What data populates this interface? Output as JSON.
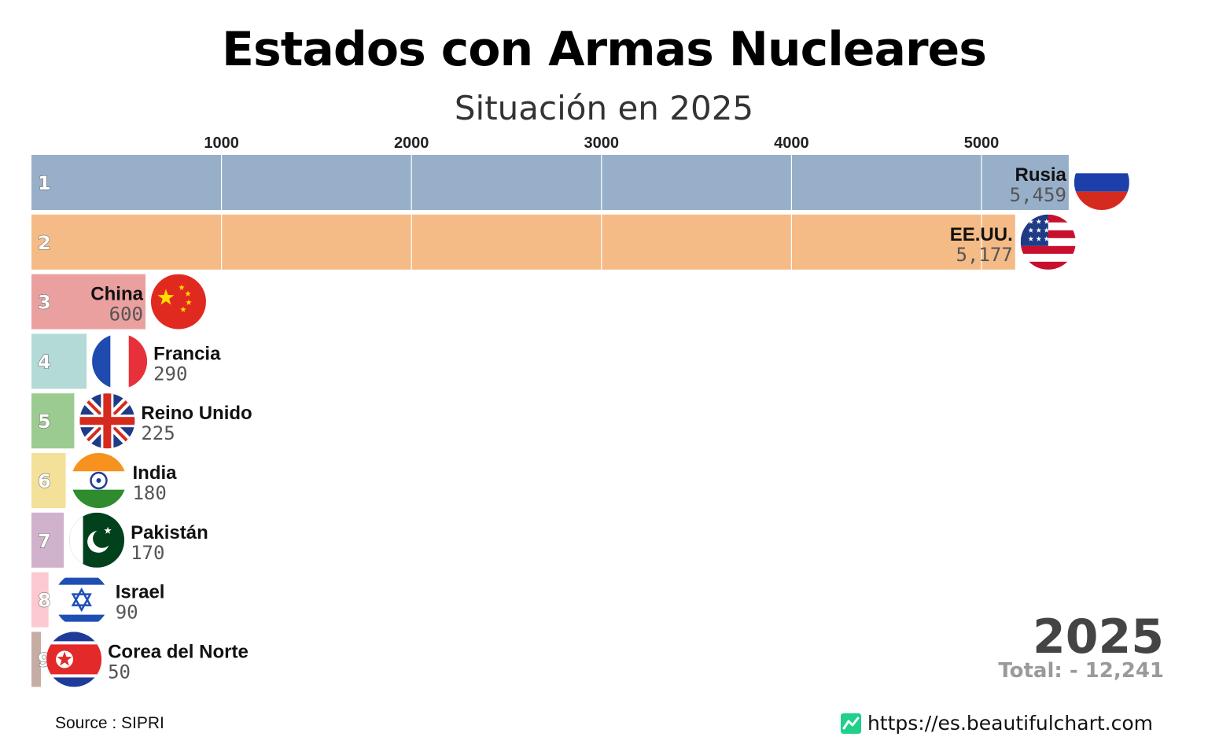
{
  "header": {
    "title": "Estados con Armas Nucleares",
    "subtitle": "Situación en 2025"
  },
  "footer": {
    "year": "2025",
    "total": "Total: - 12,241",
    "source": "Source : SIPRI",
    "website": "https://es.beautifulchart.com"
  },
  "colors": {
    "site_icon": "#1fcf8a",
    "grid": "#ffffff",
    "rank_text": "#ffffff",
    "value_text": "#555555"
  },
  "chart_data": {
    "type": "bar",
    "orientation": "horizontal",
    "x_ticks": [
      "1000",
      "2000",
      "3000",
      "4000",
      "5000"
    ],
    "xlim": [
      0,
      5459
    ],
    "categories": [
      "Rusia",
      "EE.UU.",
      "China",
      "Francia",
      "Reino Unido",
      "India",
      "Pakistán",
      "Israel",
      "Corea del Norte"
    ],
    "values": [
      5459,
      5177,
      600,
      290,
      225,
      180,
      170,
      90,
      50
    ],
    "value_labels": [
      "5,459",
      "5,177",
      "600",
      "290",
      "225",
      "180",
      "170",
      "90",
      "50"
    ],
    "ranks": [
      "1",
      "2",
      "3",
      "4",
      "5",
      "6",
      "7",
      "8",
      "9"
    ],
    "colors": [
      "#98afc9",
      "#f5bb86",
      "#eba0a0",
      "#b3dad6",
      "#9ccb92",
      "#f3e099",
      "#d1b2cc",
      "#fcc9d0",
      "#c6ada4"
    ],
    "flag_icons": [
      "russia-flag-icon",
      "usa-flag-icon",
      "china-flag-icon",
      "france-flag-icon",
      "uk-flag-icon",
      "india-flag-icon",
      "pakistan-flag-icon",
      "israel-flag-icon",
      "north-korea-flag-icon"
    ]
  }
}
